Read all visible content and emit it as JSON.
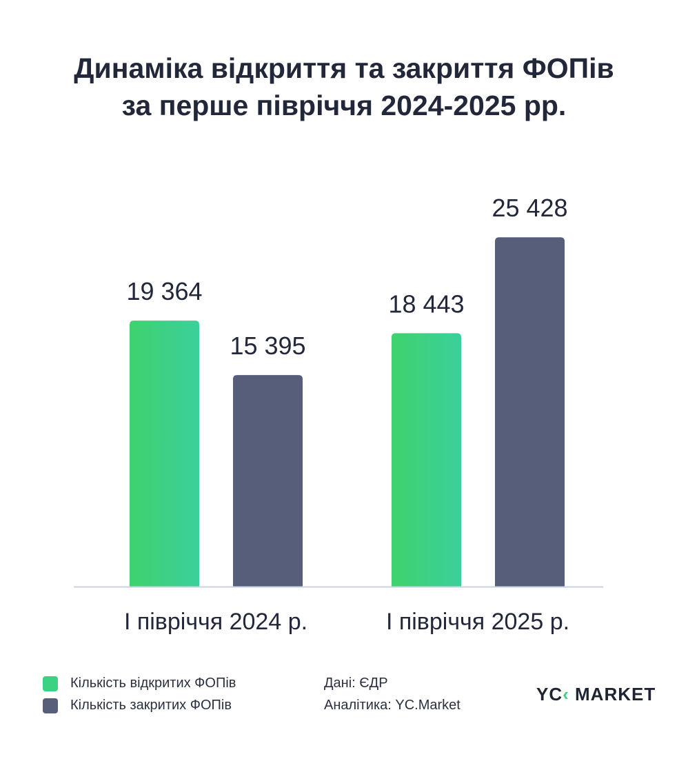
{
  "chart_data": {
    "type": "bar",
    "title": "Динаміка відкриття та закриття ФОПів за перше півріччя 2024-2025 рр.",
    "title_lines": [
      "Динаміка відкриття та закриття ФОПів",
      "за перше півріччя 2024-2025 рр."
    ],
    "categories": [
      "І півріччя 2024 р.",
      "І півріччя 2025 р."
    ],
    "series": [
      {
        "name": "Кількість відкритих ФОПів",
        "values": [
          19364,
          18443
        ],
        "labels": [
          "19 364",
          "18 443"
        ],
        "color": "#3dd178"
      },
      {
        "name": "Кількість закритих ФОПів",
        "values": [
          15395,
          25428
        ],
        "labels": [
          "15 395",
          "25 428"
        ],
        "color": "#565e79"
      }
    ],
    "grid": false,
    "legend_position": "bottom-left"
  },
  "footer": {
    "source": "Дані: ЄДР",
    "analytics": "Аналітика: YC.Market",
    "logo_text": "YC MARKET"
  }
}
